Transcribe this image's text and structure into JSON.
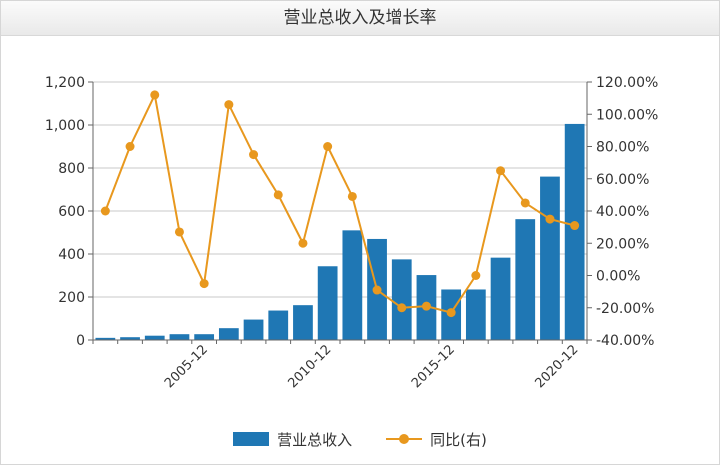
{
  "chart_data": {
    "type": "bar",
    "title": "营业总收入及增长率",
    "x_tick_labels": [
      "2005-12",
      "2010-12",
      "2015-12",
      "2020-12"
    ],
    "categories": [
      "2001-12",
      "2002-12",
      "2003-12",
      "2004-12",
      "2005-12",
      "2006-12",
      "2007-12",
      "2008-12",
      "2009-12",
      "2010-12",
      "2011-12",
      "2012-12",
      "2013-12",
      "2014-12",
      "2015-12",
      "2016-12",
      "2017-12",
      "2018-12",
      "2019-12",
      "2020-12"
    ],
    "series": [
      {
        "name": "营业总收入",
        "type": "bar",
        "axis": "left",
        "values": [
          10,
          13,
          20,
          27,
          27,
          55,
          95,
          137,
          162,
          343,
          510,
          470,
          375,
          302,
          235,
          235,
          383,
          562,
          760,
          1005
        ]
      },
      {
        "name": "同比(右)",
        "type": "line",
        "axis": "right",
        "values": [
          40,
          80,
          112,
          27,
          -5,
          106,
          75,
          50,
          20,
          80,
          49,
          -9,
          -20,
          -19,
          -23,
          0,
          65,
          45,
          35,
          31
        ]
      }
    ],
    "y_left": {
      "min": 0,
      "max": 1200,
      "ticks": [
        0,
        200,
        400,
        600,
        800,
        1000,
        1200
      ],
      "tick_labels": [
        "0",
        "200",
        "400",
        "600",
        "800",
        "1,000",
        "1,200"
      ]
    },
    "y_right": {
      "min": -40,
      "max": 120,
      "ticks": [
        -40,
        -20,
        0,
        20,
        40,
        60,
        80,
        100,
        120
      ],
      "tick_labels": [
        "-40.00%",
        "-20.00%",
        "0.00%",
        "20.00%",
        "40.00%",
        "60.00%",
        "80.00%",
        "100.00%",
        "120.00%"
      ]
    },
    "grid": true,
    "legend_position": "bottom",
    "colors": {
      "bar": "#1f77b4",
      "line": "#e8981e",
      "grid": "#c8c8c8",
      "axis": "#666666"
    }
  },
  "legend": {
    "bar_label": "营业总收入",
    "line_label": "同比(右)"
  }
}
